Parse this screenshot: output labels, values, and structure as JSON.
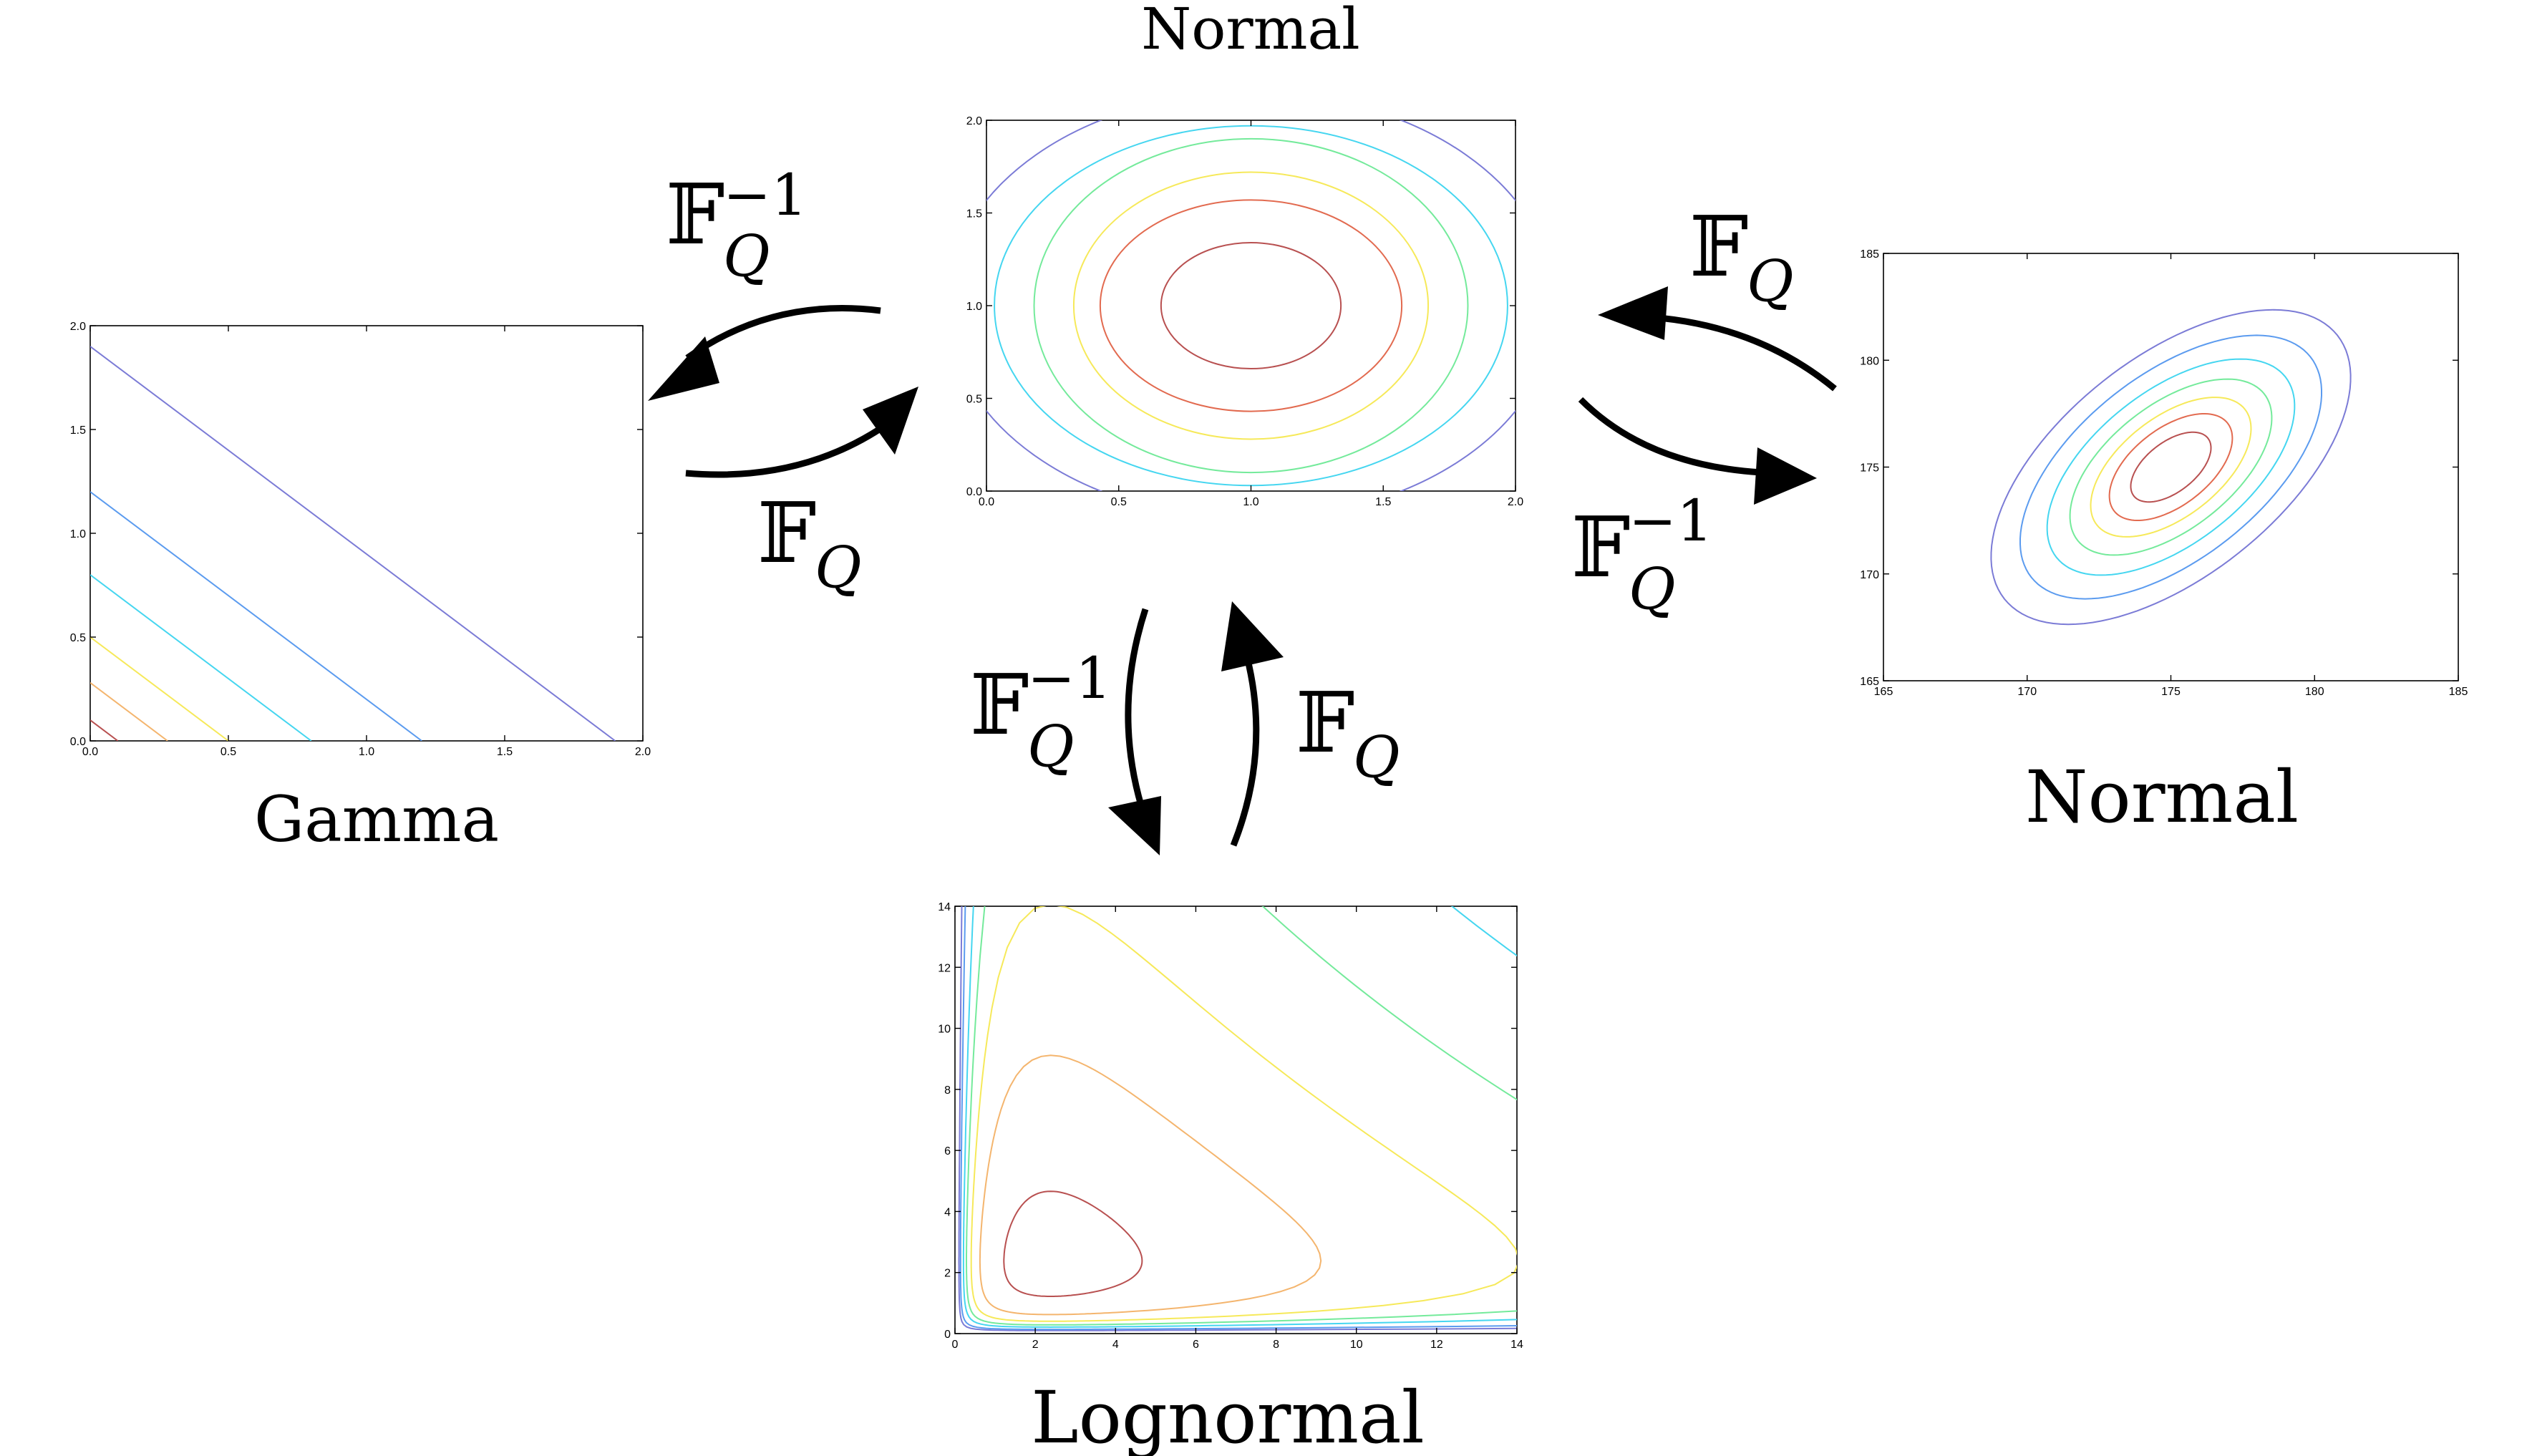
{
  "titles": {
    "top": "Normal",
    "left": "Gamma",
    "right": "Normal",
    "bottom": "Lognormal"
  },
  "operators": {
    "forward_symbol": "𝔽",
    "forward_sub": "Q",
    "inverse_symbol": "𝔽",
    "inverse_sub": "Q",
    "inverse_sup": "−1"
  },
  "level_colors": [
    "#7b7bd6",
    "#5b9bef",
    "#45d6f0",
    "#74ea9b",
    "#f6e95a",
    "#f4b56e",
    "#e26a4f",
    "#b85050"
  ],
  "chart_data": [
    {
      "type": "contour",
      "name": "top",
      "xlim": [
        0,
        2
      ],
      "ylim": [
        0,
        2
      ],
      "xticks": [
        "0.0",
        "0.5",
        "1.0",
        "1.5",
        "2.0"
      ],
      "yticks": [
        "0.0",
        "0.5",
        "1.0",
        "1.5",
        "2.0"
      ],
      "center": [
        1.0,
        1.0
      ],
      "levels": [
        {
          "rx": 1.15,
          "ry": 1.15,
          "color": "#7b7bd6"
        },
        {
          "rx": 0.97,
          "ry": 0.97,
          "color": "#45d6f0"
        },
        {
          "rx": 0.82,
          "ry": 0.9,
          "color": "#74ea9b"
        },
        {
          "rx": 0.67,
          "ry": 0.72,
          "color": "#f6e95a"
        },
        {
          "rx": 0.57,
          "ry": 0.57,
          "color": "#e26a4f"
        },
        {
          "rx": 0.34,
          "ry": 0.34,
          "color": "#b85050"
        }
      ]
    },
    {
      "type": "contour",
      "name": "left",
      "xlim": [
        0,
        2
      ],
      "ylim": [
        0,
        2
      ],
      "xticks": [
        "0.0",
        "0.5",
        "1.0",
        "1.5",
        "2.0"
      ],
      "yticks": [
        "0.0",
        "0.5",
        "1.0",
        "1.5",
        "2.0"
      ],
      "levels": [
        {
          "s": 1.9,
          "color": "#7b7bd6"
        },
        {
          "s": 1.2,
          "color": "#5b9bef"
        },
        {
          "s": 0.8,
          "color": "#45d6f0"
        },
        {
          "s": 0.5,
          "color": "#f6e95a"
        },
        {
          "s": 0.28,
          "color": "#f4b56e"
        },
        {
          "s": 0.1,
          "color": "#b85050"
        }
      ]
    },
    {
      "type": "contour",
      "name": "right",
      "xlim": [
        165,
        185
      ],
      "ylim": [
        165,
        185
      ],
      "xticks": [
        "165",
        "170",
        "175",
        "180",
        "185"
      ],
      "yticks": [
        "165",
        "170",
        "175",
        "180",
        "185"
      ],
      "center": [
        175.0,
        175.0
      ],
      "angle_deg": 53,
      "levels": [
        {
          "a": 8.6,
          "b": 4.4,
          "color": "#7b7bd6"
        },
        {
          "a": 7.2,
          "b": 3.7,
          "color": "#5b9bef"
        },
        {
          "a": 5.9,
          "b": 3.05,
          "color": "#45d6f0"
        },
        {
          "a": 4.8,
          "b": 2.5,
          "color": "#74ea9b"
        },
        {
          "a": 3.8,
          "b": 2.0,
          "color": "#f6e95a"
        },
        {
          "a": 2.9,
          "b": 1.55,
          "color": "#e26a4f"
        },
        {
          "a": 1.9,
          "b": 1.0,
          "color": "#b85050"
        }
      ]
    },
    {
      "type": "contour",
      "name": "bottom",
      "xlim": [
        0,
        15
      ],
      "ylim": [
        0,
        15
      ],
      "xticks": [
        "0",
        "2",
        "4",
        "6",
        "8",
        "10",
        "12",
        "14"
      ],
      "yticks": [
        "0",
        "2",
        "4",
        "6",
        "8",
        "10",
        "12",
        "14"
      ],
      "mu": 1.5,
      "sigma": 0.75,
      "levels": [
        {
          "k": 0.2,
          "color": "#7b7bd6"
        },
        {
          "k": 2.0,
          "color": "#5b9bef"
        },
        {
          "k": 4.0,
          "color": "#45d6f0"
        },
        {
          "k": 5.2,
          "color": "#74ea9b"
        },
        {
          "k": 6.4,
          "color": "#f6e95a"
        },
        {
          "k": 7.6,
          "color": "#f4b56e"
        },
        {
          "k": 8.8,
          "color": "#b85050"
        }
      ]
    }
  ]
}
